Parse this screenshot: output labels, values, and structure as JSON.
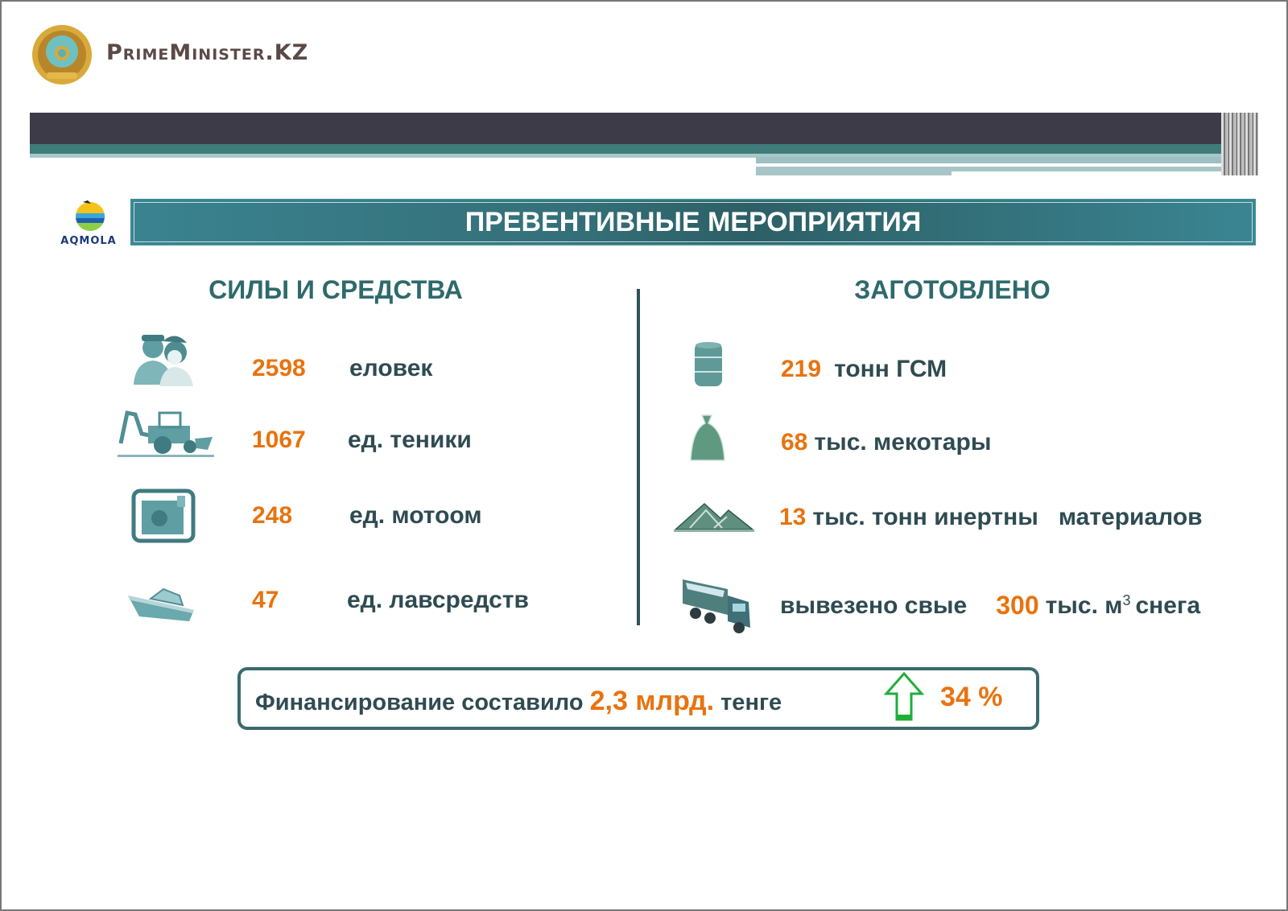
{
  "header": {
    "brand": "PrimeMinister.KZ",
    "region_logo_text": "AQMOLA"
  },
  "title": "ПРЕВЕНТИВНЫЕ МЕРОПРИЯТИЯ",
  "left": {
    "heading": "СИЛЫ И СРЕДСТВА",
    "items": [
      {
        "icon": "people-icon",
        "value": "2598",
        "label": "еловек"
      },
      {
        "icon": "backhoe-icon",
        "value": "1067",
        "label": "ед. теники"
      },
      {
        "icon": "motor-pump-icon",
        "value": "248",
        "label": "ед. мотоом"
      },
      {
        "icon": "boat-icon",
        "value": "47",
        "label": "ед. лавсредств"
      }
    ]
  },
  "right": {
    "heading": "ЗАГОТОВЛЕНО",
    "items": [
      {
        "icon": "barrel-icon",
        "value": "219",
        "label": "тонн ГСМ"
      },
      {
        "icon": "sack-icon",
        "value": "68",
        "label": "тыс. мекотары"
      },
      {
        "icon": "pile-icon",
        "value": "13",
        "label": "тыс. тонн инертны   материалов"
      },
      {
        "icon": "dump-truck-icon",
        "prefix": "вывезено свые",
        "value": "300",
        "label": "тыс. м",
        "sup": "3",
        "suffix": "снега"
      }
    ]
  },
  "financing": {
    "prefix": "Финансирование составило",
    "value": "2,3 млрд.",
    "suffix": "тенге",
    "growth": "34 %"
  },
  "colors": {
    "accent": "#e8730f",
    "teal": "#3a7d84",
    "text": "#2f4b52",
    "arrow": "#1fae3a"
  }
}
